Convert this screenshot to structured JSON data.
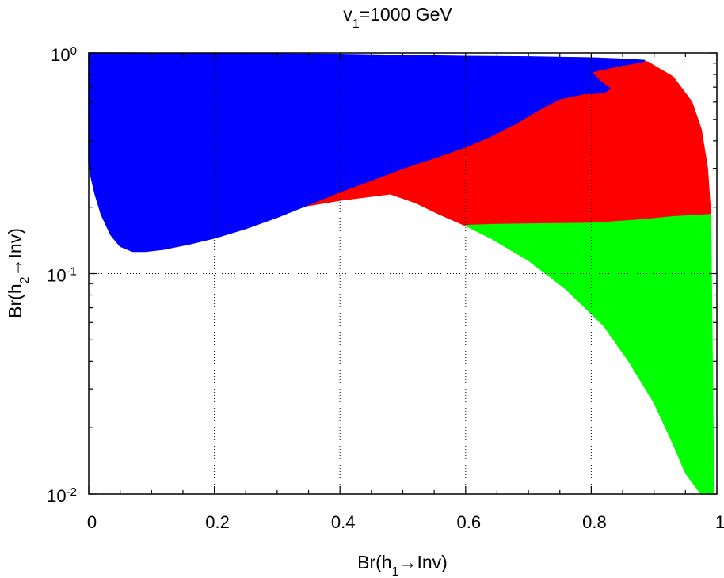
{
  "chart_data": {
    "type": "scatter",
    "title": {
      "base": "v",
      "sub": "1",
      "rest": "=1000 GeV"
    },
    "xlabel": {
      "base": "Br(h",
      "sub": "1",
      "rest": "→Inv)"
    },
    "ylabel": {
      "base": "Br(h",
      "sub": "2",
      "rest": "→Inv)"
    },
    "xscale": "linear",
    "yscale": "log",
    "xlim": [
      0,
      1
    ],
    "ylim": [
      0.01,
      1
    ],
    "grid": true,
    "x_ticks": [
      {
        "value": 0,
        "label": "0"
      },
      {
        "value": 0.2,
        "label": "0.2"
      },
      {
        "value": 0.4,
        "label": "0.4"
      },
      {
        "value": 0.6,
        "label": "0.6"
      },
      {
        "value": 0.8,
        "label": "0.8"
      },
      {
        "value": 1,
        "label": "1"
      }
    ],
    "y_ticks": [
      {
        "value": 0.01,
        "base": "10",
        "exp": "-2"
      },
      {
        "value": 0.1,
        "base": "10",
        "exp": "-1"
      },
      {
        "value": 1,
        "base": "10",
        "exp": "0"
      }
    ],
    "series": [
      {
        "name": "red-region",
        "color": "#ff0000",
        "outline": [
          [
            0.32,
            0.197
          ],
          [
            0.4,
            0.215
          ],
          [
            0.48,
            0.23
          ],
          [
            0.52,
            0.21
          ],
          [
            0.56,
            0.185
          ],
          [
            0.6,
            0.165
          ],
          [
            0.65,
            0.167
          ],
          [
            0.72,
            0.168
          ],
          [
            0.8,
            0.169
          ],
          [
            0.88,
            0.175
          ],
          [
            0.93,
            0.181
          ],
          [
            0.99,
            0.185
          ],
          [
            0.985,
            0.3
          ],
          [
            0.975,
            0.45
          ],
          [
            0.96,
            0.6
          ],
          [
            0.93,
            0.78
          ],
          [
            0.89,
            0.91
          ],
          [
            0.86,
            0.935
          ],
          [
            0.8,
            0.95
          ],
          [
            0.6,
            0.96
          ],
          [
            0.58,
            0.55
          ],
          [
            0.45,
            0.35
          ]
        ]
      },
      {
        "name": "green-region",
        "color": "#00ff00",
        "outline": [
          [
            0.6,
            0.165
          ],
          [
            0.64,
            0.145
          ],
          [
            0.7,
            0.115
          ],
          [
            0.76,
            0.085
          ],
          [
            0.82,
            0.058
          ],
          [
            0.86,
            0.04
          ],
          [
            0.9,
            0.026
          ],
          [
            0.93,
            0.017
          ],
          [
            0.95,
            0.0125
          ],
          [
            0.975,
            0.01
          ],
          [
            0.995,
            0.01
          ],
          [
            0.99,
            0.185
          ],
          [
            0.93,
            0.181
          ],
          [
            0.88,
            0.175
          ],
          [
            0.8,
            0.169
          ],
          [
            0.72,
            0.168
          ],
          [
            0.65,
            0.167
          ]
        ]
      },
      {
        "name": "blue-region",
        "color": "#0000ff",
        "outline": [
          [
            0.0,
            1.0
          ],
          [
            0.0,
            0.32
          ],
          [
            0.003,
            0.28
          ],
          [
            0.01,
            0.23
          ],
          [
            0.02,
            0.185
          ],
          [
            0.035,
            0.15
          ],
          [
            0.05,
            0.133
          ],
          [
            0.07,
            0.126
          ],
          [
            0.09,
            0.126
          ],
          [
            0.12,
            0.129
          ],
          [
            0.16,
            0.136
          ],
          [
            0.2,
            0.145
          ],
          [
            0.25,
            0.16
          ],
          [
            0.3,
            0.18
          ],
          [
            0.34,
            0.2
          ],
          [
            0.4,
            0.235
          ],
          [
            0.45,
            0.265
          ],
          [
            0.5,
            0.3
          ],
          [
            0.55,
            0.335
          ],
          [
            0.6,
            0.375
          ],
          [
            0.64,
            0.42
          ],
          [
            0.68,
            0.48
          ],
          [
            0.72,
            0.56
          ],
          [
            0.75,
            0.62
          ],
          [
            0.79,
            0.655
          ],
          [
            0.82,
            0.66
          ],
          [
            0.83,
            0.69
          ],
          [
            0.815,
            0.74
          ],
          [
            0.8,
            0.82
          ],
          [
            0.84,
            0.87
          ],
          [
            0.88,
            0.91
          ],
          [
            0.885,
            0.925
          ],
          [
            0.86,
            0.935
          ],
          [
            0.8,
            0.95
          ],
          [
            0.7,
            0.96
          ],
          [
            0.6,
            0.965
          ],
          [
            0.5,
            0.975
          ],
          [
            0.4,
            0.985
          ],
          [
            0.3,
            0.99
          ],
          [
            0.2,
            0.995
          ],
          [
            0.1,
            0.998
          ]
        ]
      }
    ]
  }
}
